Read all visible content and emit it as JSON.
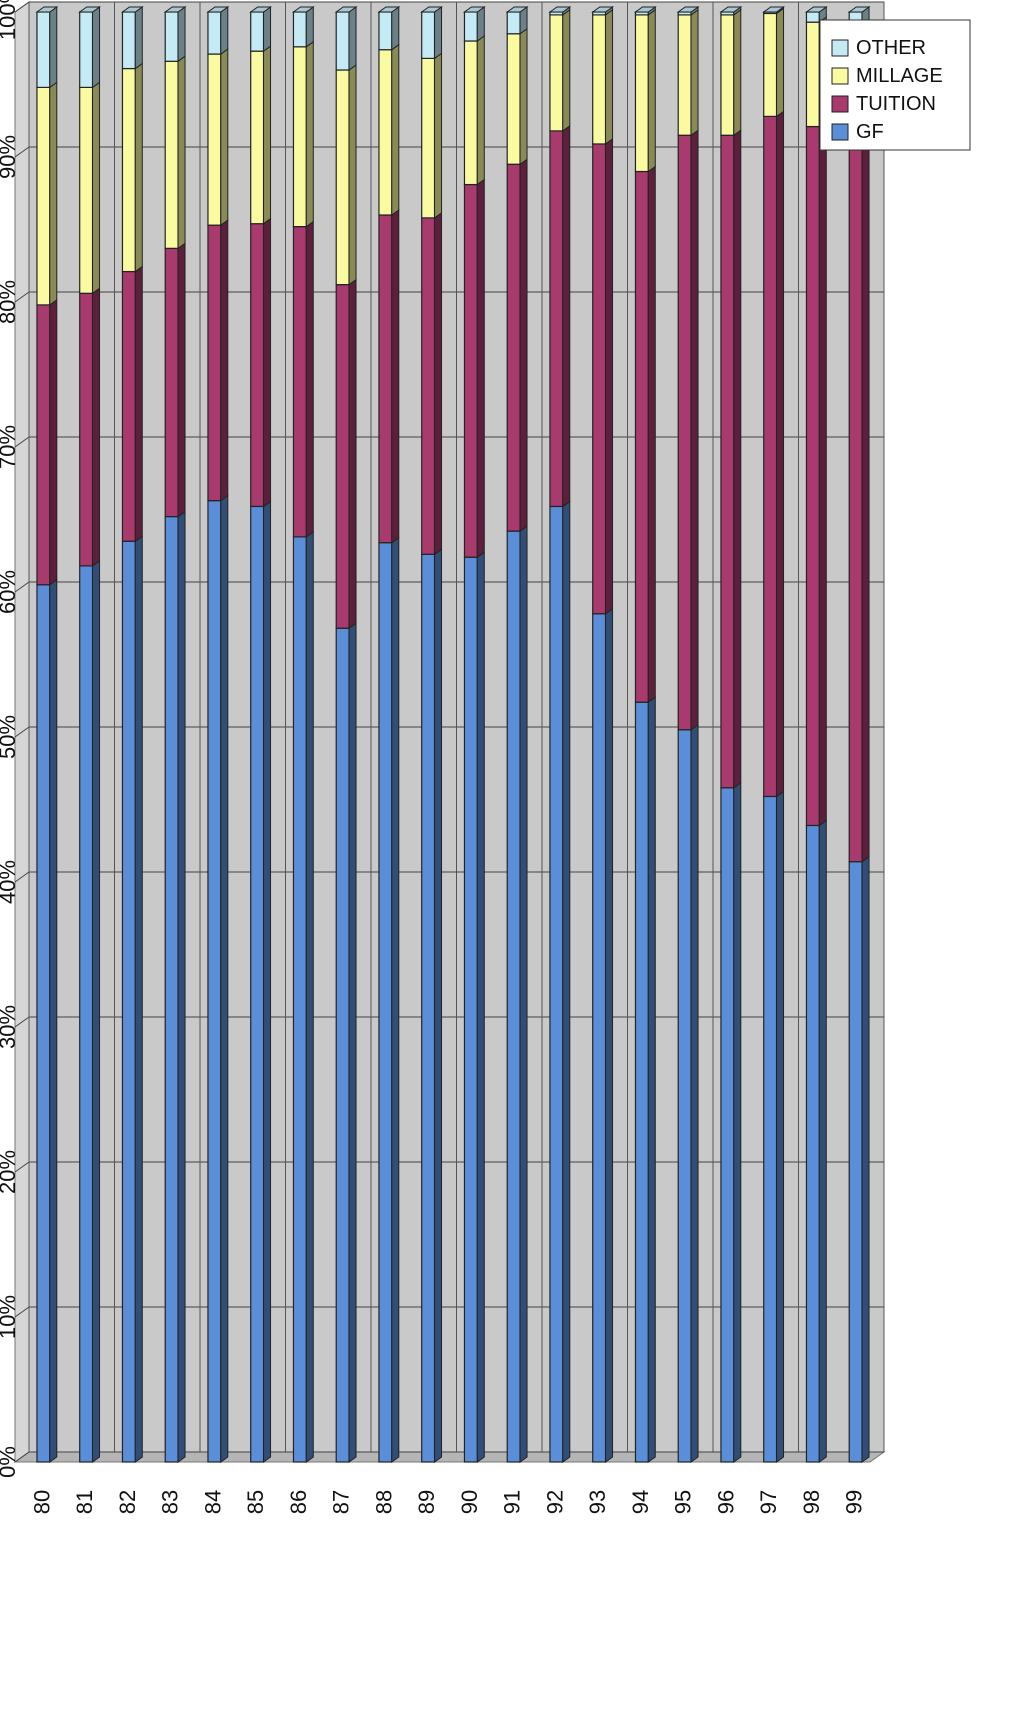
{
  "chart_data": {
    "type": "bar",
    "stacked": true,
    "percent_stacked": true,
    "orientation": "horizontal",
    "categories": [
      "80",
      "81",
      "82",
      "83",
      "84",
      "85",
      "86",
      "87",
      "88",
      "89",
      "90",
      "91",
      "92",
      "93",
      "94",
      "95",
      "96",
      "97",
      "98",
      "99"
    ],
    "series": [
      {
        "name": "GF",
        "color": "#5b8ed8",
        "values": [
          60.5,
          61.8,
          63.5,
          65.2,
          66.3,
          65.9,
          63.8,
          57.5,
          63.4,
          62.6,
          62.4,
          64.2,
          65.9,
          58.5,
          52.4,
          50.5,
          46.5,
          45.9,
          43.9,
          41.4
        ]
      },
      {
        "name": "TUITION",
        "color": "#a83a6e",
        "values": [
          19.3,
          18.8,
          18.6,
          18.5,
          19.0,
          19.5,
          21.4,
          23.7,
          22.6,
          23.2,
          25.7,
          25.3,
          25.9,
          32.4,
          36.6,
          41.0,
          45.0,
          46.9,
          48.2,
          50.4
        ]
      },
      {
        "name": "MILLAGE",
        "color": "#fafaa0",
        "values": [
          15.0,
          14.2,
          14.0,
          12.9,
          11.8,
          11.9,
          12.4,
          14.8,
          11.4,
          11.0,
          9.9,
          9.0,
          8.0,
          8.9,
          10.8,
          8.3,
          8.3,
          7.1,
          7.2,
          7.2
        ]
      },
      {
        "name": "OTHER",
        "color": "#c4eaf6",
        "values": [
          5.2,
          5.2,
          3.9,
          3.4,
          2.9,
          2.7,
          2.4,
          4.0,
          2.6,
          3.2,
          2.0,
          1.5,
          0.2,
          0.2,
          0.2,
          0.2,
          0.2,
          0.1,
          0.7,
          1.0
        ]
      }
    ],
    "axis": {
      "value_ticks": [
        "0%",
        "10%",
        "20%",
        "30%",
        "40%",
        "50%",
        "60%",
        "70%",
        "80%",
        "90%",
        "100%"
      ],
      "value_range": [
        0,
        100
      ]
    },
    "legend": {
      "placement": "top-right",
      "entries": [
        "OTHER",
        "MILLAGE",
        "TUITION",
        "GF"
      ]
    },
    "grid": true
  }
}
